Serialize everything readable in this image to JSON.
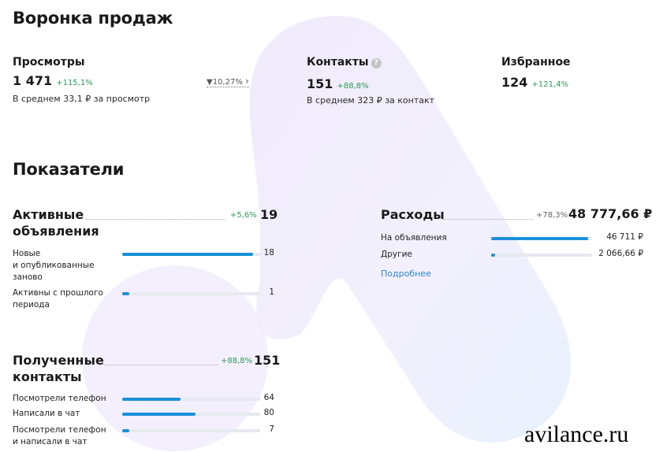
{
  "funnel": {
    "title": "Воронка продаж",
    "views": {
      "label": "Просмотры",
      "value": "1 471",
      "change": "+115,1%",
      "avg": "В среднем 33,1 ₽ за просмотр"
    },
    "conversion": "10,27%",
    "contacts": {
      "label": "Контакты",
      "value": "151",
      "change": "+88,8%",
      "avg": "В среднем 323 ₽ за контакт"
    },
    "favorites": {
      "label": "Избранное",
      "value": "124",
      "change": "+121,4%"
    }
  },
  "indicators": {
    "title": "Показатели",
    "active_ads": {
      "line1": "Активные",
      "line2": "объявления",
      "change": "+5,6%",
      "value": "19",
      "rows": [
        {
          "label_lines": [
            "Новые",
            "и опубликованные",
            "заново"
          ],
          "value": "18",
          "fill": 0.95
        },
        {
          "label_lines": [
            "Активны с прошлого",
            "периода"
          ],
          "value": "1",
          "fill": 0.05
        }
      ]
    },
    "contacts": {
      "line1": "Полученные",
      "line2": "контакты",
      "change": "+88,8%",
      "value": "151",
      "rows": [
        {
          "label_lines": [
            "Посмотрели телефон"
          ],
          "value": "64",
          "fill": 0.42
        },
        {
          "label_lines": [
            "Написали в чат"
          ],
          "value": "80",
          "fill": 0.53
        },
        {
          "label_lines": [
            "Посмотрели телефон",
            "и написали в чат"
          ],
          "value": "7",
          "fill": 0.05
        }
      ]
    },
    "expenses": {
      "label": "Расходы",
      "change": "+78,3%",
      "value": "48 777,66 ₽",
      "rows": [
        {
          "label": "На объявления",
          "value": "46 711 ₽",
          "fill": 0.96
        },
        {
          "label": "Другие",
          "value": "2 066,66 ₽",
          "fill": 0.04
        }
      ],
      "link": "Подробнее"
    }
  },
  "watermark": "avilance.ru"
}
